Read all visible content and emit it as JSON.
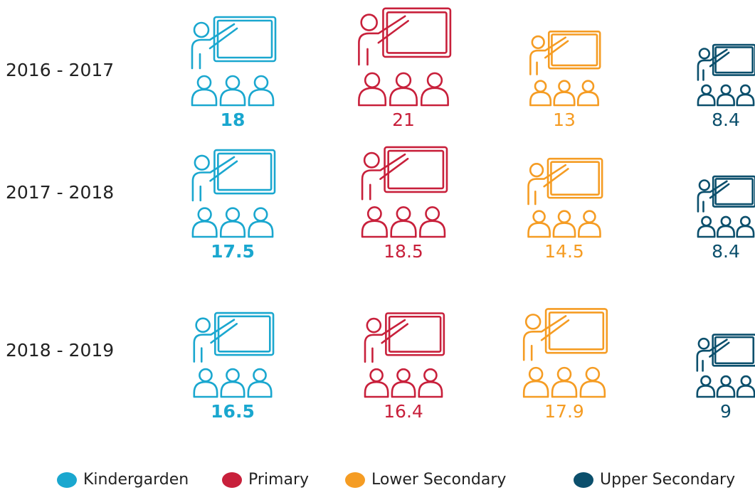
{
  "chart_data": {
    "type": "pictogram",
    "categories": [
      "2016 - 2017",
      "2017 - 2018",
      "2018 - 2019"
    ],
    "series": [
      {
        "name": "Kindergarden",
        "color": "#1aa7cf",
        "values": [
          18,
          17.5,
          16.5
        ]
      },
      {
        "name": "Primary",
        "color": "#c8203b",
        "values": [
          21,
          18.5,
          16.4
        ]
      },
      {
        "name": "Lower Secondary",
        "color": "#f59c23",
        "values": [
          13,
          14.5,
          17.9
        ]
      },
      {
        "name": "Upper Secondary",
        "color": "#0b4f6c",
        "values": [
          8.4,
          8.4,
          9
        ]
      }
    ],
    "legend": "bottom"
  }
}
